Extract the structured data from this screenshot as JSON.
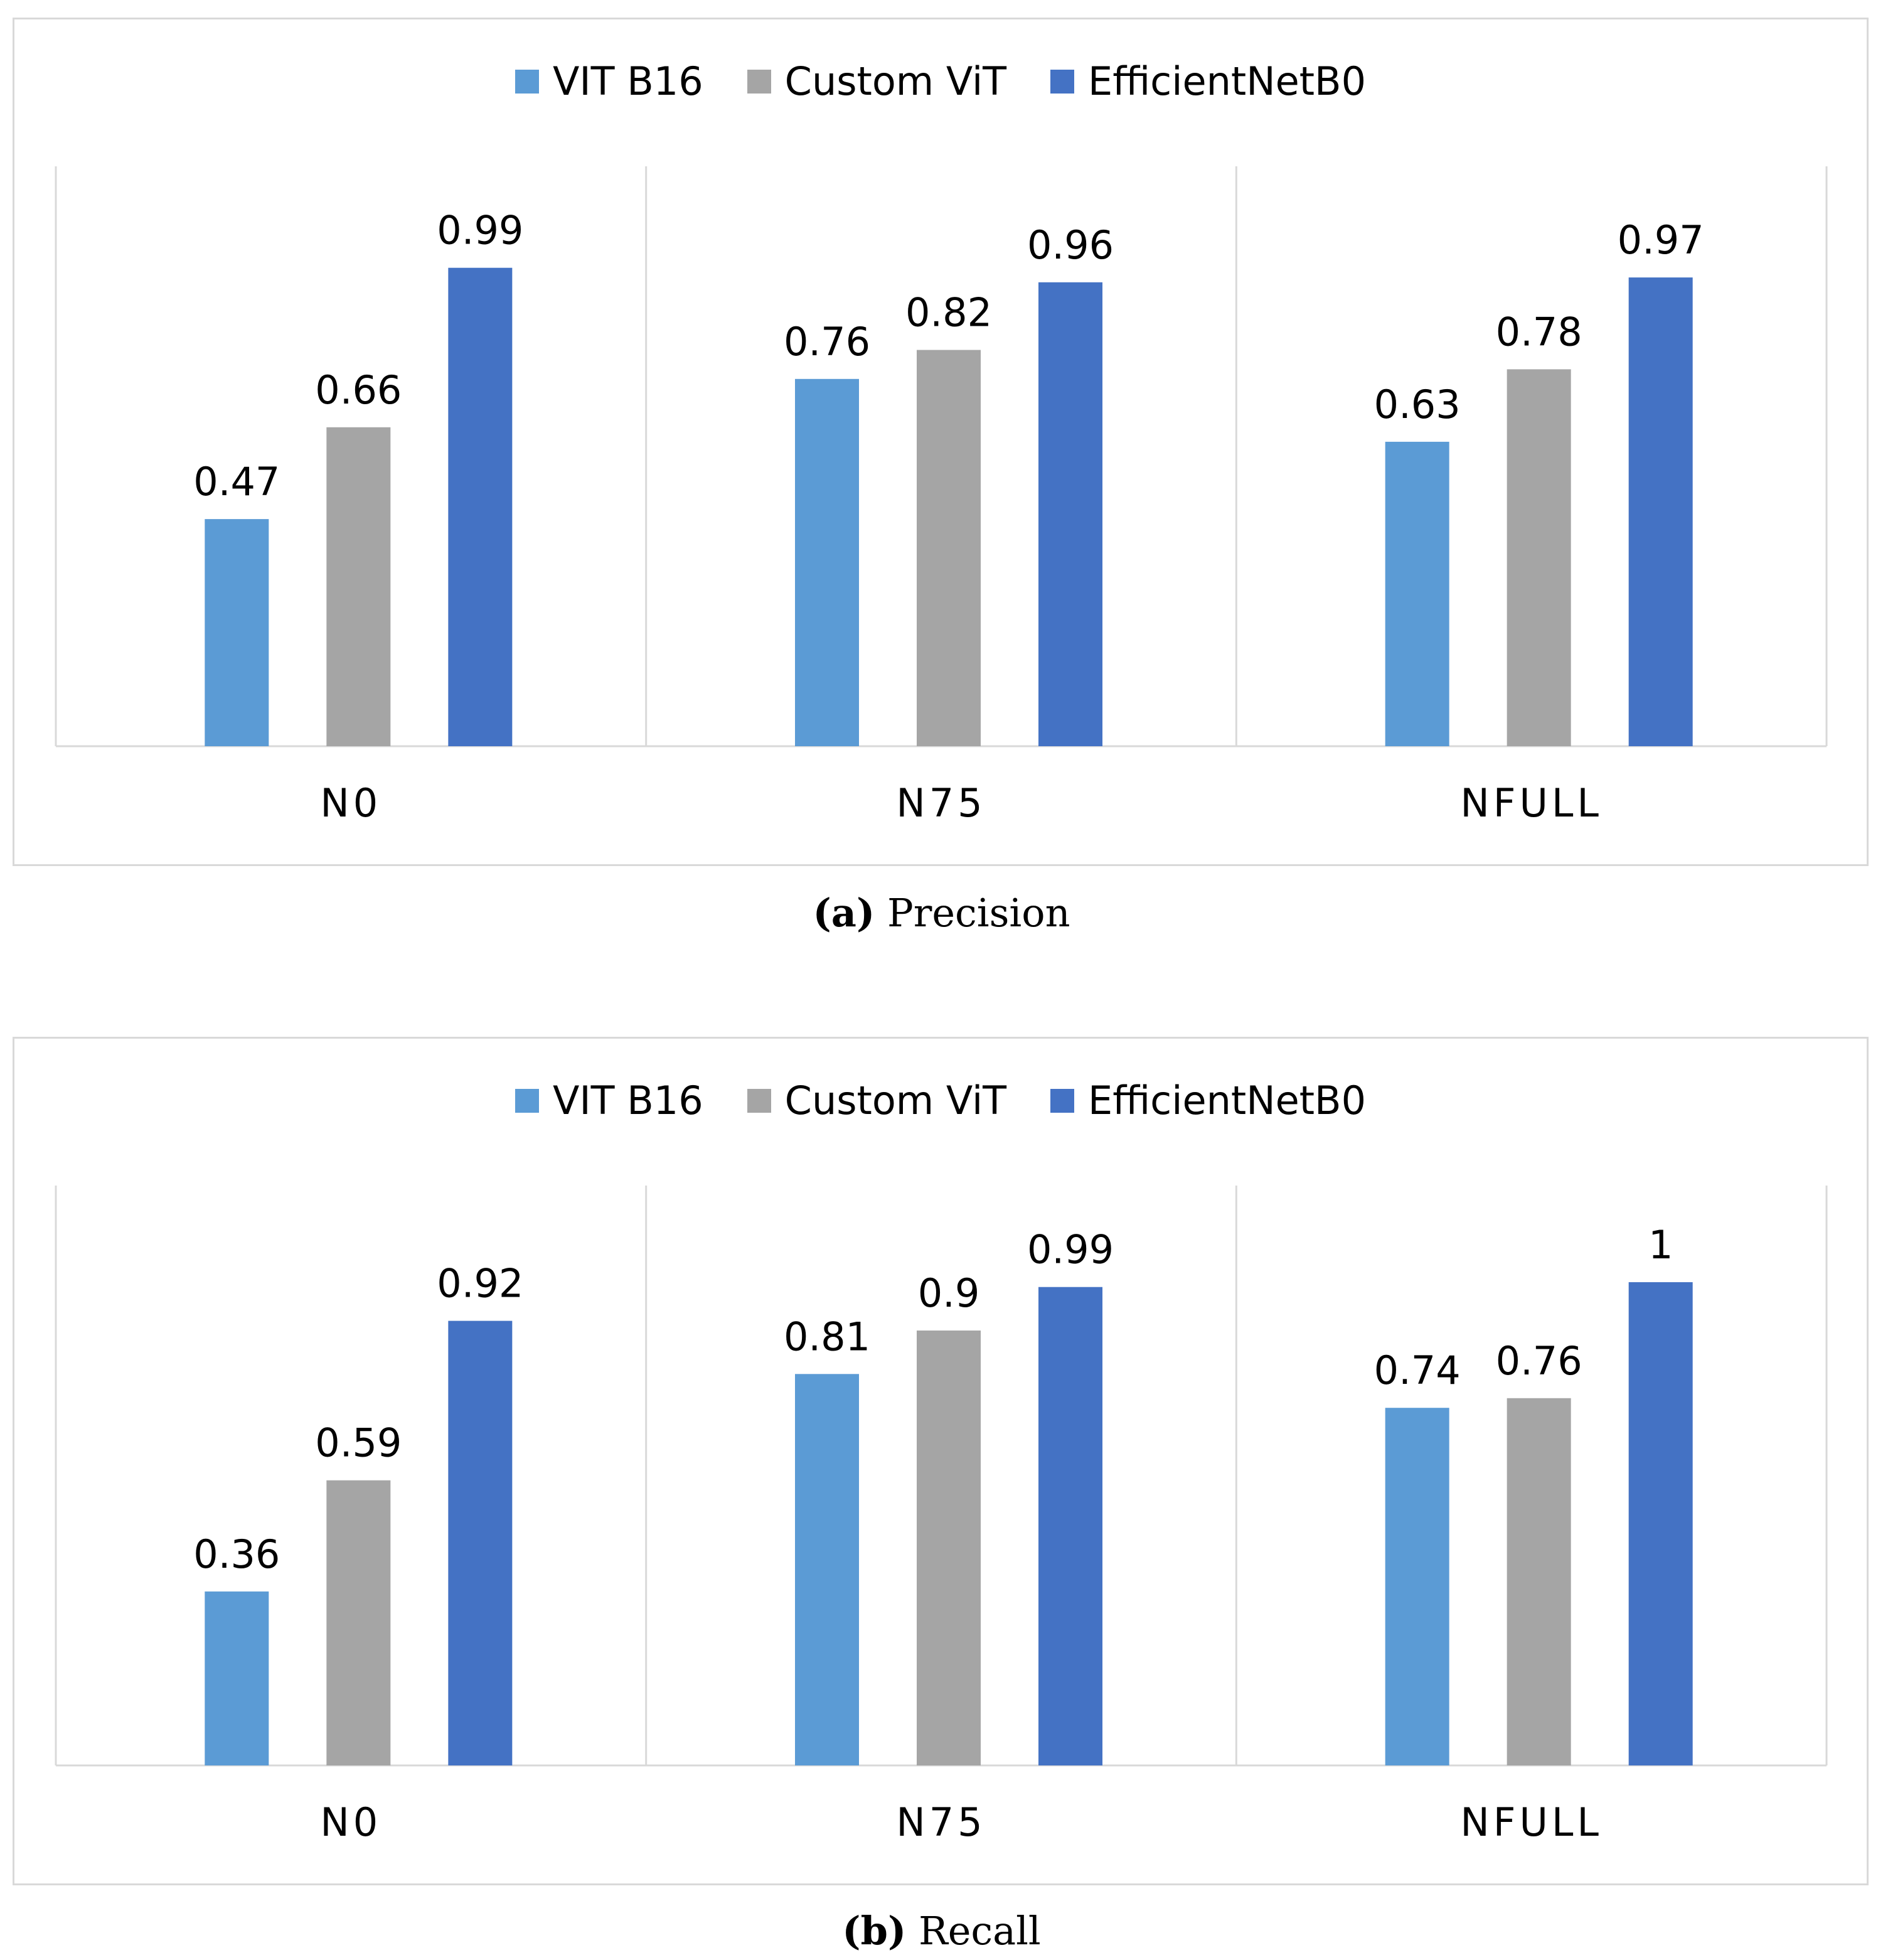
{
  "chart_data": [
    {
      "type": "bar",
      "caption_letter": "(a)",
      "caption_text": "Precision",
      "categories": [
        "N0",
        "N75",
        "NFULL"
      ],
      "series": [
        {
          "name": "VIT B16",
          "color": "#5b9bd5",
          "values": [
            0.47,
            0.76,
            0.63
          ]
        },
        {
          "name": "Custom ViT",
          "color": "#a5a5a5",
          "values": [
            0.66,
            0.82,
            0.78
          ]
        },
        {
          "name": "EfficientNetB0",
          "color": "#4472c4",
          "values": [
            0.99,
            0.96,
            0.97
          ]
        }
      ],
      "ylim": [
        0,
        1.2
      ],
      "grid": false,
      "legend": "top-center"
    },
    {
      "type": "bar",
      "caption_letter": "(b)",
      "caption_text": "Recall",
      "categories": [
        "N0",
        "N75",
        "NFULL"
      ],
      "series": [
        {
          "name": "VIT B16",
          "color": "#5b9bd5",
          "values": [
            0.36,
            0.81,
            0.74
          ]
        },
        {
          "name": "Custom ViT",
          "color": "#a5a5a5",
          "values": [
            0.59,
            0.9,
            0.76
          ]
        },
        {
          "name": "EfficientNetB0",
          "color": "#4472c4",
          "values": [
            0.92,
            0.99,
            1
          ]
        }
      ],
      "ylim": [
        0,
        1.2
      ],
      "grid": false,
      "legend": "top-center"
    }
  ]
}
